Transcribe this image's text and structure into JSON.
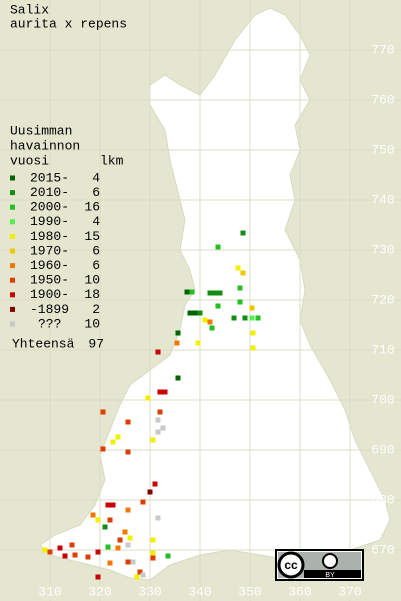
{
  "chart_data": {
    "type": "scatter",
    "title": "Salix",
    "subtitle": "aurita x repens",
    "legend_title": [
      "Uusimman",
      "havainnon",
      "vuosi"
    ],
    "count_header": "lkm",
    "total_label": "Yhteensä",
    "total": 97,
    "license_icon": "cc",
    "license": "BY",
    "xlim": [
      300,
      380.2
    ],
    "ylim": [
      659.8,
      780
    ],
    "xticks": [
      310,
      320,
      330,
      340,
      350,
      360,
      370
    ],
    "yticks": [
      670,
      680,
      690,
      700,
      710,
      720,
      730,
      740,
      750,
      760,
      770
    ],
    "grid": true,
    "series": [
      {
        "name": "2015-",
        "count": 4,
        "color": "#006400",
        "x": [
          337.4,
          338,
          339,
          335.6,
          335.6
        ],
        "y": [
          721.6,
          717.4,
          717.4,
          713.4,
          704.4
        ]
      },
      {
        "name": "2010-",
        "count": 6,
        "color": "#138c13",
        "x": [
          348.6,
          342,
          343,
          344,
          340,
          349,
          346.8,
          321
        ],
        "y": [
          733.4,
          721.4,
          721.4,
          721.4,
          717.4,
          716.4,
          716.4,
          674.6
        ]
      },
      {
        "name": "2000-",
        "count": 16,
        "color": "#22c022",
        "x": [
          343.6,
          338.4,
          348,
          348,
          343.6,
          342.4,
          351.6,
          321.6,
          333.6
        ],
        "y": [
          730.6,
          721.6,
          722.4,
          719.6,
          718.8,
          714.4,
          716.4,
          670.6,
          668.8
        ]
      },
      {
        "name": "1990-",
        "count": 4,
        "color": "#55ee55",
        "x": [
          350.4
        ],
        "y": [
          716.4
        ]
      },
      {
        "name": "1980-",
        "count": 15,
        "color": "#f0f000",
        "x": [
          347.6,
          341,
          339.6,
          350.6,
          350.6,
          329.6,
          323.6,
          322.6,
          330.6,
          319.6,
          326,
          330.6,
          330.6,
          309,
          327.4
        ],
        "y": [
          726.4,
          716,
          711.4,
          713.4,
          710.4,
          700.4,
          692.6,
          691.6,
          692,
          676,
          672.4,
          672,
          669.4,
          670,
          664.6
        ]
      },
      {
        "name": "1970-",
        "count": 6,
        "color": "#f0c800",
        "x": [
          348.6,
          350.4
        ],
        "y": [
          725.4,
          718.4
        ]
      },
      {
        "name": "1960-",
        "count": 6,
        "color": "#f07800",
        "x": [
          342,
          335.4,
          318.6,
          325.6,
          325,
          323.6,
          322
        ],
        "y": [
          715.6,
          711.4,
          677,
          678,
          673.6,
          670.4,
          667.4
        ]
      },
      {
        "name": "1950-",
        "count": 10,
        "color": "#e03c00",
        "x": [
          332,
          320.6,
          325.6,
          320.6,
          325.6,
          328.6,
          322,
          324,
          317.6,
          310,
          314.4,
          315,
          325.6,
          328,
          330.6
        ],
        "y": [
          697.6,
          697.6,
          695.6,
          690.2,
          689.6,
          679.6,
          676,
          672,
          668.6,
          669.6,
          671,
          669,
          667.6,
          665.6,
          668.4
        ]
      },
      {
        "name": "1900-",
        "count": 18,
        "color": "#c80000",
        "x": [
          331.6,
          333,
          332,
          331,
          321.6,
          322.6,
          319.6,
          312,
          313,
          319.6
        ],
        "y": [
          709.6,
          701.6,
          701.6,
          683.2,
          679,
          679,
          669.6,
          670.4,
          668.8,
          664.6
        ]
      },
      {
        "name": "-1899",
        "count": 2,
        "color": "#800000",
        "x": [
          330
        ],
        "y": [
          681.6
        ]
      },
      {
        "name": "???",
        "count": 10,
        "color": "#c8c8c8",
        "x": [
          331.6,
          331.6,
          332.6,
          331.6,
          325.6,
          326.6,
          328.6
        ],
        "y": [
          696,
          693.6,
          694.4,
          676.4,
          671,
          667.6,
          665
        ]
      }
    ]
  }
}
